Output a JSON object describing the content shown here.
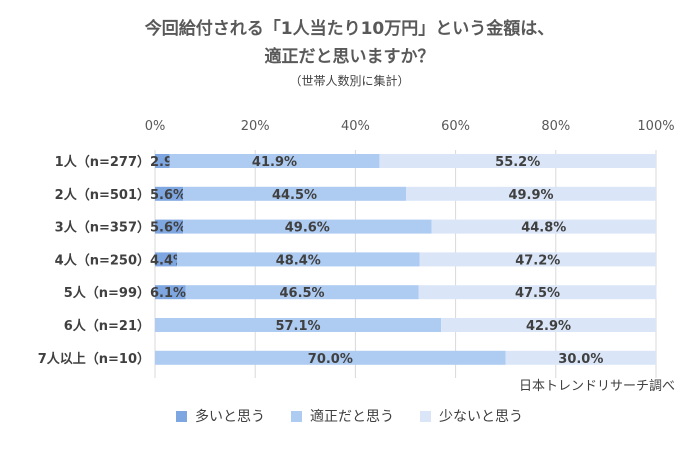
{
  "title_line1": "今回給付される「1人当たり10万円」という金額は、",
  "title_line2": "適正だと思いますか？",
  "subtitle": "（世帯人数別に集計）",
  "source": "日本トレンドリサーチ調べ",
  "colors": {
    "series0": "#7ea6e0",
    "series1": "#aecbf2",
    "series2": "#dae6f8",
    "grid": "#d9d9d9"
  },
  "chart_data": {
    "type": "bar",
    "orientation": "horizontal",
    "stacked": true,
    "percent": true,
    "categories": [
      "1人（n=277）",
      "2人（n=501）",
      "3人（n=357）",
      "4人（n=250）",
      "5人（n=99）",
      "6人（n=21）",
      "7人以上（n=10）"
    ],
    "series": [
      {
        "name": "多いと思う",
        "values": [
          2.9,
          5.6,
          5.6,
          4.4,
          6.1,
          0,
          0
        ]
      },
      {
        "name": "適正だと思う",
        "values": [
          41.9,
          44.5,
          49.6,
          48.4,
          46.5,
          57.1,
          70.0
        ]
      },
      {
        "name": "少ないと思う",
        "values": [
          55.2,
          49.9,
          44.8,
          47.2,
          47.5,
          42.9,
          30.0
        ]
      }
    ],
    "xlim": [
      0,
      100
    ],
    "xticks": [
      "0%",
      "20%",
      "40%",
      "60%",
      "80%",
      "100%"
    ],
    "legend_position": "bottom",
    "grid": true
  }
}
